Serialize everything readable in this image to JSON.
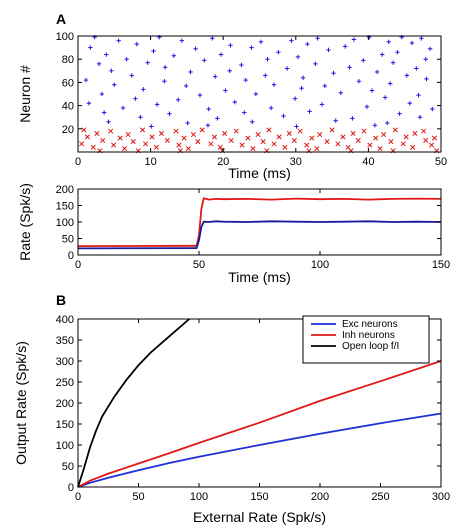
{
  "figure": {
    "panel_letters": [
      "A",
      "B"
    ]
  },
  "chart_data": [
    {
      "panel": "A-top",
      "type": "scatter",
      "xlabel": "Time (ms)",
      "ylabel": "Neuron #",
      "xlim": [
        0,
        50
      ],
      "ylim": [
        0,
        100
      ],
      "xticks": [
        0,
        10,
        20,
        30,
        40,
        50
      ],
      "yticks": [
        20,
        40,
        60,
        80,
        100
      ],
      "grid": false,
      "series": [
        {
          "color": "#1a1ae6",
          "marker": "+",
          "points": [
            [
              2.3,
              99
            ],
            [
              11.2,
              99
            ],
            [
              18.5,
              98
            ],
            [
              33.0,
              98
            ],
            [
              40.1,
              99
            ],
            [
              44.6,
              99
            ],
            [
              47.3,
              98
            ],
            [
              5.6,
              96
            ],
            [
              14.3,
              96
            ],
            [
              25.2,
              95
            ],
            [
              29.4,
              96
            ],
            [
              38.0,
              97
            ],
            [
              42.8,
              95
            ],
            [
              8.1,
              93
            ],
            [
              21.0,
              92
            ],
            [
              31.6,
              93
            ],
            [
              46.0,
              94
            ],
            [
              1.7,
              90
            ],
            [
              16.2,
              89
            ],
            [
              23.9,
              90
            ],
            [
              36.8,
              91
            ],
            [
              48.5,
              89
            ],
            [
              10.4,
              87
            ],
            [
              27.6,
              86
            ],
            [
              34.5,
              88
            ],
            [
              44.0,
              86
            ],
            [
              3.9,
              84
            ],
            [
              13.2,
              83
            ],
            [
              19.7,
              84
            ],
            [
              30.3,
              82
            ],
            [
              41.9,
              84
            ],
            [
              6.7,
              80
            ],
            [
              17.4,
              79
            ],
            [
              26.1,
              80
            ],
            [
              39.3,
              79
            ],
            [
              47.9,
              80
            ],
            [
              2.9,
              76
            ],
            [
              9.6,
              77
            ],
            [
              22.5,
              75
            ],
            [
              32.7,
              76
            ],
            [
              43.4,
              77
            ],
            [
              12.0,
              73
            ],
            [
              28.8,
              72
            ],
            [
              37.4,
              73
            ],
            [
              46.6,
              72
            ],
            [
              4.6,
              70
            ],
            [
              15.5,
              69
            ],
            [
              20.9,
              70
            ],
            [
              35.2,
              68
            ],
            [
              41.2,
              69
            ],
            [
              7.4,
              66
            ],
            [
              18.9,
              65
            ],
            [
              25.8,
              66
            ],
            [
              31.0,
              64
            ],
            [
              45.3,
              66
            ],
            [
              1.1,
              62
            ],
            [
              11.9,
              61
            ],
            [
              23.1,
              62
            ],
            [
              38.7,
              61
            ],
            [
              48.0,
              63
            ],
            [
              5.0,
              58
            ],
            [
              14.9,
              57
            ],
            [
              27.0,
              58
            ],
            [
              34.0,
              57
            ],
            [
              43.0,
              59
            ],
            [
              9.0,
              54
            ],
            [
              20.3,
              53
            ],
            [
              30.8,
              55
            ],
            [
              40.5,
              53
            ],
            [
              3.3,
              50
            ],
            [
              16.8,
              49
            ],
            [
              24.5,
              50
            ],
            [
              36.2,
              51
            ],
            [
              46.9,
              49
            ],
            [
              7.9,
              46
            ],
            [
              13.8,
              45
            ],
            [
              29.9,
              46
            ],
            [
              42.3,
              47
            ],
            [
              1.5,
              42
            ],
            [
              10.9,
              41
            ],
            [
              21.6,
              43
            ],
            [
              33.6,
              41
            ],
            [
              45.7,
              42
            ],
            [
              6.2,
              38
            ],
            [
              18.0,
              37
            ],
            [
              26.6,
              38
            ],
            [
              39.8,
              39
            ],
            [
              48.8,
              37
            ],
            [
              3.6,
              34
            ],
            [
              12.6,
              33
            ],
            [
              22.9,
              34
            ],
            [
              31.9,
              35
            ],
            [
              44.3,
              33
            ],
            [
              8.6,
              30
            ],
            [
              19.2,
              29
            ],
            [
              28.3,
              31
            ],
            [
              37.8,
              29
            ],
            [
              47.1,
              30
            ],
            [
              4.2,
              26
            ],
            [
              15.1,
              25
            ],
            [
              24.0,
              26
            ],
            [
              35.5,
              27
            ],
            [
              42.6,
              25
            ],
            [
              10.1,
              22
            ],
            [
              17.9,
              23
            ],
            [
              30.1,
              22
            ],
            [
              40.9,
              23
            ]
          ]
        },
        {
          "color": "#e01818",
          "marker": "x",
          "points": [
            [
              0.8,
              19
            ],
            [
              4.5,
              18
            ],
            [
              8.9,
              19
            ],
            [
              13.5,
              18
            ],
            [
              17.1,
              19
            ],
            [
              21.8,
              18
            ],
            [
              26.3,
              19
            ],
            [
              30.6,
              18
            ],
            [
              35.0,
              19
            ],
            [
              39.4,
              18
            ],
            [
              43.7,
              19
            ],
            [
              47.6,
              18
            ],
            [
              2.6,
              16
            ],
            [
              6.9,
              15
            ],
            [
              11.5,
              16
            ],
            [
              15.9,
              15
            ],
            [
              20.2,
              16
            ],
            [
              24.8,
              15
            ],
            [
              29.1,
              16
            ],
            [
              33.3,
              15
            ],
            [
              37.9,
              16
            ],
            [
              42.1,
              15
            ],
            [
              46.4,
              16
            ],
            [
              1.3,
              13
            ],
            [
              5.8,
              12
            ],
            [
              10.2,
              13
            ],
            [
              14.6,
              12
            ],
            [
              18.8,
              13
            ],
            [
              23.4,
              12
            ],
            [
              27.7,
              13
            ],
            [
              32.2,
              12
            ],
            [
              36.5,
              13
            ],
            [
              41.0,
              12
            ],
            [
              45.2,
              13
            ],
            [
              49.1,
              12
            ],
            [
              3.4,
              10
            ],
            [
              7.6,
              9
            ],
            [
              12.3,
              10
            ],
            [
              16.5,
              9
            ],
            [
              21.1,
              10
            ],
            [
              25.5,
              9
            ],
            [
              29.8,
              10
            ],
            [
              34.3,
              9
            ],
            [
              38.6,
              10
            ],
            [
              43.1,
              9
            ],
            [
              47.9,
              10
            ],
            [
              0.5,
              7
            ],
            [
              4.9,
              6
            ],
            [
              9.3,
              7
            ],
            [
              13.9,
              6
            ],
            [
              18.3,
              7
            ],
            [
              22.6,
              6
            ],
            [
              27.0,
              7
            ],
            [
              31.5,
              6
            ],
            [
              35.8,
              7
            ],
            [
              40.2,
              6
            ],
            [
              44.8,
              7
            ],
            [
              48.7,
              6
            ],
            [
              2.1,
              4
            ],
            [
              6.4,
              3
            ],
            [
              10.8,
              4
            ],
            [
              15.2,
              3
            ],
            [
              19.6,
              4
            ],
            [
              24.1,
              3
            ],
            [
              28.5,
              4
            ],
            [
              32.9,
              3
            ],
            [
              37.2,
              4
            ],
            [
              41.6,
              3
            ],
            [
              46.1,
              4
            ],
            [
              3.0,
              1
            ],
            [
              8.3,
              1
            ],
            [
              14.1,
              1
            ],
            [
              19.9,
              1
            ],
            [
              26.0,
              1
            ],
            [
              31.8,
              1
            ],
            [
              37.6,
              1
            ],
            [
              43.4,
              1
            ],
            [
              49.4,
              1
            ]
          ]
        }
      ]
    },
    {
      "panel": "A-bottom",
      "type": "line",
      "xlabel": "Time (ms)",
      "ylabel": "Rate (Spk/s)",
      "xlim": [
        0,
        150
      ],
      "ylim": [
        0,
        200
      ],
      "xticks": [
        0,
        50,
        100,
        150
      ],
      "yticks": [
        0,
        50,
        100,
        150,
        200
      ],
      "grid": false,
      "series": [
        {
          "color": "#e01818",
          "x": [
            0,
            48,
            49,
            50,
            51,
            52,
            54,
            57,
            60,
            70,
            80,
            90,
            100,
            110,
            120,
            130,
            140,
            150
          ],
          "y": [
            27,
            28,
            28,
            60,
            140,
            172,
            168,
            170,
            169,
            170,
            168,
            171,
            169,
            170,
            168,
            170,
            171,
            170
          ]
        },
        {
          "color": "#1a1a9e",
          "x": [
            0,
            48,
            49,
            50,
            51,
            52,
            54,
            57,
            60,
            70,
            80,
            90,
            100,
            110,
            120,
            130,
            140,
            150
          ],
          "y": [
            20,
            21,
            21,
            45,
            85,
            101,
            100,
            102,
            101,
            100,
            102,
            101,
            100,
            101,
            102,
            100,
            101,
            100
          ]
        }
      ]
    },
    {
      "panel": "B",
      "type": "line",
      "xlabel": "External Rate (Spk/s)",
      "ylabel": "Output Rate (Spk/s)",
      "xlim": [
        0,
        300
      ],
      "ylim": [
        0,
        400
      ],
      "xticks": [
        0,
        50,
        100,
        150,
        200,
        250,
        300
      ],
      "yticks": [
        0,
        50,
        100,
        150,
        200,
        250,
        300,
        350,
        400
      ],
      "grid": false,
      "legend": "top-right",
      "series": [
        {
          "name": "Exc neurons",
          "color": "#1f2fd6",
          "x": [
            0,
            10,
            25,
            50,
            75,
            100,
            150,
            200,
            250,
            300
          ],
          "y": [
            0,
            10,
            22,
            40,
            57,
            72,
            100,
            127,
            152,
            175
          ]
        },
        {
          "name": "Inh neurons",
          "color": "#e01818",
          "x": [
            0,
            10,
            25,
            50,
            75,
            100,
            150,
            200,
            250,
            300
          ],
          "y": [
            0,
            15,
            32,
            56,
            80,
            105,
            153,
            205,
            252,
            300
          ]
        },
        {
          "name": "Open loop f/I",
          "color": "#000000",
          "x": [
            0,
            5,
            10,
            15,
            20,
            30,
            40,
            50,
            60,
            70,
            80,
            92
          ],
          "y": [
            0,
            45,
            95,
            135,
            168,
            215,
            255,
            290,
            320,
            345,
            370,
            400
          ]
        }
      ]
    }
  ]
}
